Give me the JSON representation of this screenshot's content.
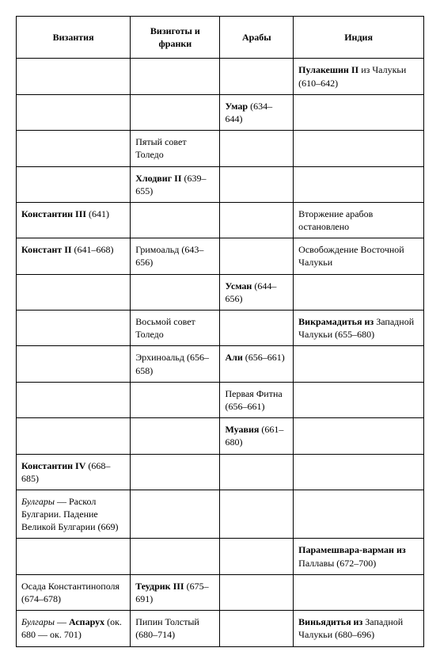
{
  "table": {
    "columns": [
      {
        "key": "byzantium",
        "label": "Византия",
        "widthClass": "col-byz"
      },
      {
        "key": "visigoths",
        "label": "Визиготы и франки",
        "widthClass": "col-vis"
      },
      {
        "key": "arabs",
        "label": "Арабы",
        "widthClass": "col-arab"
      },
      {
        "key": "india",
        "label": "Индия",
        "widthClass": "col-ind"
      }
    ],
    "rows": [
      {
        "byzantium": "",
        "visigoths": "",
        "arabs": "",
        "india": "<span class='b'>Пулакешин II</span> из Чалукьи (610–642)"
      },
      {
        "byzantium": "",
        "visigoths": "",
        "arabs": "<span class='b'>Умар</span> (634–644)",
        "india": ""
      },
      {
        "byzantium": "",
        "visigoths": "Пятый совет Толедо",
        "arabs": "",
        "india": ""
      },
      {
        "byzantium": "",
        "visigoths": "<span class='b'>Хлодвиг II</span> (639–655)",
        "arabs": "",
        "india": ""
      },
      {
        "byzantium": "<span class='b'>Константин III</span> (641)",
        "visigoths": "",
        "arabs": "",
        "india": "Вторжение арабов остановлено"
      },
      {
        "byzantium": "<span class='b'>Констант II</span> (641–668)",
        "visigoths": "Гримоальд (643–656)",
        "arabs": "",
        "india": "Освобождение Восточной Чалукьи"
      },
      {
        "byzantium": "",
        "visigoths": "",
        "arabs": "<span class='b'>Усман</span> (644–656)",
        "india": ""
      },
      {
        "byzantium": "",
        "visigoths": "Восьмой совет Толедо",
        "arabs": "",
        "india": "<span class='b'>Викрамадитья из</span> Западной Чалукьи (655–680)"
      },
      {
        "byzantium": "",
        "visigoths": "Эрхиноальд (656–658)",
        "arabs": "<span class='b'>Али</span> (656–661)",
        "india": ""
      },
      {
        "byzantium": "",
        "visigoths": "",
        "arabs": "Первая Фитна (656–661)",
        "india": ""
      },
      {
        "byzantium": "",
        "visigoths": "",
        "arabs": "<span class='b'>Муавия</span> (661–680)",
        "india": ""
      },
      {
        "byzantium": "<span class='b'>Константин IV</span> (668–685)",
        "visigoths": "",
        "arabs": "",
        "india": ""
      },
      {
        "byzantium": "<span class='i'>Булгары</span> — Раскол Булгарии. Падение Великой Булгарии (669)",
        "visigoths": "",
        "arabs": "",
        "india": ""
      },
      {
        "byzantium": "",
        "visigoths": "",
        "arabs": "",
        "india": "<span class='b'>Парамешвара-варман из</span> Паллавы (672–700)"
      },
      {
        "byzantium": "Осада Константинополя (674–678)",
        "visigoths": "<span class='b'>Теудрик III</span> (675–691)",
        "arabs": "",
        "india": ""
      },
      {
        "byzantium": "<span class='i'>Булгары</span> — <span class='b'>Аспарух</span> (ок. 680 — ок. 701)",
        "visigoths": "Пипин Толстый (680–714)",
        "arabs": "",
        "india": "<span class='b'>Виньядитья из</span> Западной Чалукьи (680–696)"
      }
    ]
  },
  "styles": {
    "background_color": "#ffffff",
    "border_color": "#000000",
    "font_family": "Georgia, 'Times New Roman', serif",
    "header_fontsize": 12,
    "cell_fontsize": 12,
    "cell_padding": "6px 6px"
  }
}
